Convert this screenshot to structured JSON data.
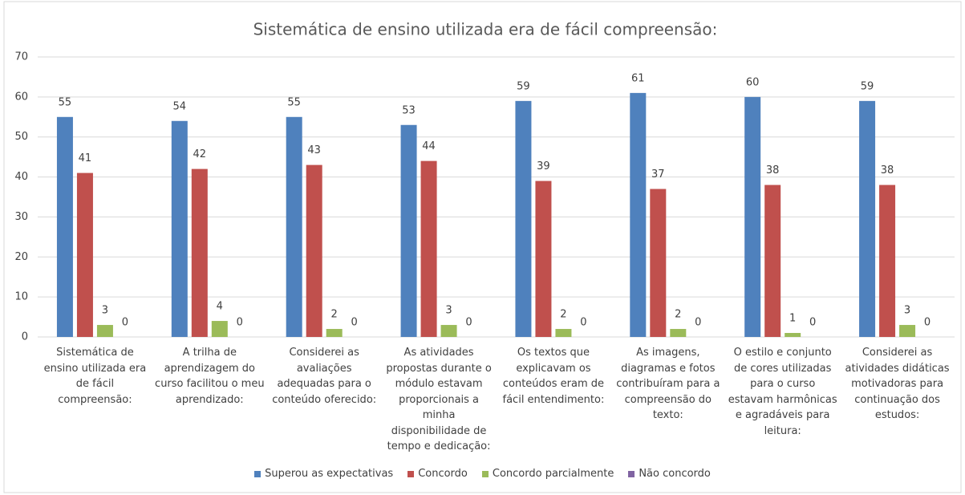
{
  "chart_data": {
    "type": "bar",
    "title": "Sistemática de ensino utilizada era de fácil compreensão:",
    "categories": [
      "Sistemática de ensino utilizada era de fácil compreensão:",
      "A trilha de aprendizagem do curso facilitou o meu aprendizado:",
      "Considerei as avaliações adequadas para o conteúdo oferecido:",
      "As atividades propostas durante o módulo estavam proporcionais a minha disponibilidade de tempo e dedicação:",
      "Os textos que explicavam os conteúdos eram de fácil entendimento:",
      "As imagens, diagramas e fotos contribuíram para a compreensão do texto:",
      "O estilo e conjunto de cores utilizadas para o curso estavam harmônicas e agradáveis para leitura:",
      "Considerei as atividades didáticas motivadoras para continuação dos estudos:"
    ],
    "series": [
      {
        "name": "Superou as expectativas",
        "color": "#4f81bd",
        "values": [
          55,
          54,
          55,
          53,
          59,
          61,
          60,
          59
        ]
      },
      {
        "name": "Concordo",
        "color": "#c0504d",
        "values": [
          41,
          42,
          43,
          44,
          39,
          37,
          38,
          38
        ]
      },
      {
        "name": "Concordo parcialmente",
        "color": "#9bbb59",
        "values": [
          3,
          4,
          2,
          3,
          2,
          2,
          1,
          3
        ]
      },
      {
        "name": "Não concordo",
        "color": "#8064a2",
        "values": [
          0,
          0,
          0,
          0,
          0,
          0,
          0,
          0
        ]
      }
    ],
    "ylim": [
      0,
      70
    ],
    "yticks": [
      0,
      10,
      20,
      30,
      40,
      50,
      60,
      70
    ],
    "grid": true,
    "legend": "bottom"
  }
}
